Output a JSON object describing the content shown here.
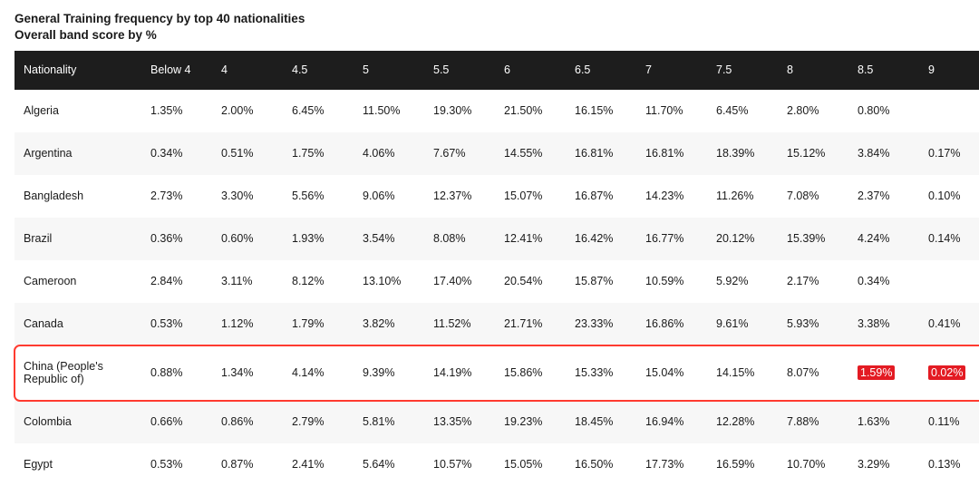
{
  "title": {
    "line1": "General Training frequency by top 40 nationalities",
    "line2": "Overall band score by %"
  },
  "colors": {
    "header_bg": "#1d1d1d",
    "header_fg": "#ffffff",
    "row_even_bg": "#f7f7f7",
    "row_odd_bg": "#ffffff",
    "text": "#1a1a1a",
    "row_outline": "#ff3b30",
    "cell_highlight_bg": "#e31b23",
    "cell_highlight_fg": "#ffffff"
  },
  "table": {
    "columns": [
      "Nationality",
      "Below 4",
      "4",
      "4.5",
      "5",
      "5.5",
      "6",
      "6.5",
      "7",
      "7.5",
      "8",
      "8.5",
      "9"
    ],
    "rows": [
      {
        "cells": [
          "Algeria",
          "1.35%",
          "2.00%",
          "6.45%",
          "11.50%",
          "19.30%",
          "21.50%",
          "16.15%",
          "11.70%",
          "6.45%",
          "2.80%",
          "0.80%",
          ""
        ]
      },
      {
        "cells": [
          "Argentina",
          "0.34%",
          "0.51%",
          "1.75%",
          "4.06%",
          "7.67%",
          "14.55%",
          "16.81%",
          "16.81%",
          "18.39%",
          "15.12%",
          "3.84%",
          "0.17%"
        ]
      },
      {
        "cells": [
          "Bangladesh",
          "2.73%",
          "3.30%",
          "5.56%",
          "9.06%",
          "12.37%",
          "15.07%",
          "16.87%",
          "14.23%",
          "11.26%",
          "7.08%",
          "2.37%",
          "0.10%"
        ]
      },
      {
        "cells": [
          "Brazil",
          "0.36%",
          "0.60%",
          "1.93%",
          "3.54%",
          "8.08%",
          "12.41%",
          "16.42%",
          "16.77%",
          "20.12%",
          "15.39%",
          "4.24%",
          "0.14%"
        ]
      },
      {
        "cells": [
          "Cameroon",
          "2.84%",
          "3.11%",
          "8.12%",
          "13.10%",
          "17.40%",
          "20.54%",
          "15.87%",
          "10.59%",
          "5.92%",
          "2.17%",
          "0.34%",
          ""
        ]
      },
      {
        "cells": [
          "Canada",
          "0.53%",
          "1.12%",
          "1.79%",
          "3.82%",
          "11.52%",
          "21.71%",
          "23.33%",
          "16.86%",
          "9.61%",
          "5.93%",
          "3.38%",
          "0.41%"
        ]
      },
      {
        "cells": [
          "China (People's Republic of)",
          "0.88%",
          "1.34%",
          "4.14%",
          "9.39%",
          "14.19%",
          "15.86%",
          "15.33%",
          "15.04%",
          "14.15%",
          "8.07%",
          "1.59%",
          "0.02%"
        ],
        "row_highlight": true,
        "cell_highlight_indexes": [
          11,
          12
        ]
      },
      {
        "cells": [
          "Colombia",
          "0.66%",
          "0.86%",
          "2.79%",
          "5.81%",
          "13.35%",
          "19.23%",
          "18.45%",
          "16.94%",
          "12.28%",
          "7.88%",
          "1.63%",
          "0.11%"
        ]
      },
      {
        "cells": [
          "Egypt",
          "0.53%",
          "0.87%",
          "2.41%",
          "5.64%",
          "10.57%",
          "15.05%",
          "16.50%",
          "17.73%",
          "16.59%",
          "10.70%",
          "3.29%",
          "0.13%"
        ]
      }
    ]
  }
}
